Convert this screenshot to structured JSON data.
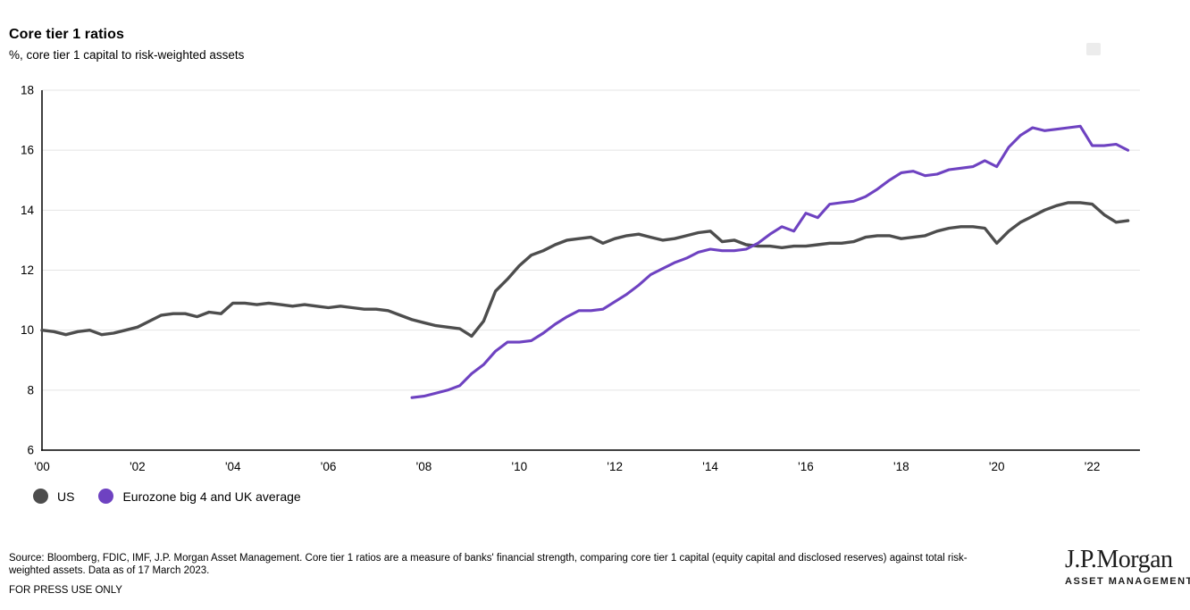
{
  "page": {
    "title": "Core tier 1 ratios",
    "subtitle": "%, core tier 1 capital to risk-weighted assets"
  },
  "icons": {
    "corner_icon": "expand-icon"
  },
  "footer": {
    "source_line1": "Source: Bloomberg, FDIC, IMF, J.P. Morgan Asset Management. Core tier 1 ratios are a measure of banks' financial strength, comparing core tier 1 capital (equity capital and disclosed reserves) against total risk-",
    "source_line2": "weighted assets. Data as of 17 March 2023.",
    "press_note": "FOR PRESS USE ONLY",
    "brand": {
      "logo": "J.P.Morgan",
      "division": "ASSET MANAGEMENT"
    }
  },
  "chart_data": {
    "type": "line",
    "title": "Core tier 1 ratios",
    "subtitle": "%, core tier 1 capital to risk-weighted assets",
    "ylabel": "%",
    "ylim": [
      6,
      18
    ],
    "yticks": [
      18,
      16,
      14,
      12,
      10,
      8,
      6
    ],
    "xlim": [
      2000,
      2023
    ],
    "xticks": [
      "'00",
      "'02",
      "'04",
      "'06",
      "'08",
      "'10",
      "'12",
      "'14",
      "'16",
      "'18",
      "'20",
      "'22"
    ],
    "xtick_years": [
      2000,
      2002,
      2004,
      2006,
      2008,
      2010,
      2012,
      2014,
      2016,
      2018,
      2020,
      2022
    ],
    "grid": "horizontal",
    "grid_color": "#e4e4e4",
    "axis_color": "#000000",
    "legend_position": "bottom-left",
    "series": [
      {
        "name": "US",
        "color": "#4d4d4d",
        "points": [
          [
            2000.0,
            10.0
          ],
          [
            2000.25,
            9.95
          ],
          [
            2000.5,
            9.85
          ],
          [
            2000.75,
            9.95
          ],
          [
            2001.0,
            10.0
          ],
          [
            2001.25,
            9.85
          ],
          [
            2001.5,
            9.9
          ],
          [
            2001.75,
            10.0
          ],
          [
            2002.0,
            10.1
          ],
          [
            2002.25,
            10.3
          ],
          [
            2002.5,
            10.5
          ],
          [
            2002.75,
            10.55
          ],
          [
            2003.0,
            10.55
          ],
          [
            2003.25,
            10.45
          ],
          [
            2003.5,
            10.6
          ],
          [
            2003.75,
            10.55
          ],
          [
            2004.0,
            10.9
          ],
          [
            2004.25,
            10.9
          ],
          [
            2004.5,
            10.85
          ],
          [
            2004.75,
            10.9
          ],
          [
            2005.0,
            10.85
          ],
          [
            2005.25,
            10.8
          ],
          [
            2005.5,
            10.85
          ],
          [
            2005.75,
            10.8
          ],
          [
            2006.0,
            10.75
          ],
          [
            2006.25,
            10.8
          ],
          [
            2006.5,
            10.75
          ],
          [
            2006.75,
            10.7
          ],
          [
            2007.0,
            10.7
          ],
          [
            2007.25,
            10.65
          ],
          [
            2007.5,
            10.5
          ],
          [
            2007.75,
            10.35
          ],
          [
            2008.0,
            10.25
          ],
          [
            2008.25,
            10.15
          ],
          [
            2008.5,
            10.1
          ],
          [
            2008.75,
            10.05
          ],
          [
            2009.0,
            9.8
          ],
          [
            2009.25,
            10.3
          ],
          [
            2009.5,
            11.3
          ],
          [
            2009.75,
            11.7
          ],
          [
            2010.0,
            12.15
          ],
          [
            2010.25,
            12.5
          ],
          [
            2010.5,
            12.65
          ],
          [
            2010.75,
            12.85
          ],
          [
            2011.0,
            13.0
          ],
          [
            2011.25,
            13.05
          ],
          [
            2011.5,
            13.1
          ],
          [
            2011.75,
            12.9
          ],
          [
            2012.0,
            13.05
          ],
          [
            2012.25,
            13.15
          ],
          [
            2012.5,
            13.2
          ],
          [
            2012.75,
            13.1
          ],
          [
            2013.0,
            13.0
          ],
          [
            2013.25,
            13.05
          ],
          [
            2013.5,
            13.15
          ],
          [
            2013.75,
            13.25
          ],
          [
            2014.0,
            13.3
          ],
          [
            2014.25,
            12.95
          ],
          [
            2014.5,
            13.0
          ],
          [
            2014.75,
            12.85
          ],
          [
            2015.0,
            12.8
          ],
          [
            2015.25,
            12.8
          ],
          [
            2015.5,
            12.75
          ],
          [
            2015.75,
            12.8
          ],
          [
            2016.0,
            12.8
          ],
          [
            2016.25,
            12.85
          ],
          [
            2016.5,
            12.9
          ],
          [
            2016.75,
            12.9
          ],
          [
            2017.0,
            12.95
          ],
          [
            2017.25,
            13.1
          ],
          [
            2017.5,
            13.15
          ],
          [
            2017.75,
            13.15
          ],
          [
            2018.0,
            13.05
          ],
          [
            2018.25,
            13.1
          ],
          [
            2018.5,
            13.15
          ],
          [
            2018.75,
            13.3
          ],
          [
            2019.0,
            13.4
          ],
          [
            2019.25,
            13.45
          ],
          [
            2019.5,
            13.45
          ],
          [
            2019.75,
            13.4
          ],
          [
            2020.0,
            12.9
          ],
          [
            2020.25,
            13.3
          ],
          [
            2020.5,
            13.6
          ],
          [
            2020.75,
            13.8
          ],
          [
            2021.0,
            14.0
          ],
          [
            2021.25,
            14.15
          ],
          [
            2021.5,
            14.25
          ],
          [
            2021.75,
            14.25
          ],
          [
            2022.0,
            14.2
          ],
          [
            2022.25,
            13.85
          ],
          [
            2022.5,
            13.6
          ],
          [
            2022.75,
            13.65
          ]
        ]
      },
      {
        "name": "Eurozone big 4 and UK average",
        "color": "#6e42c1",
        "points": [
          [
            2007.75,
            7.75
          ],
          [
            2008.0,
            7.8
          ],
          [
            2008.25,
            7.9
          ],
          [
            2008.5,
            8.0
          ],
          [
            2008.75,
            8.15
          ],
          [
            2009.0,
            8.55
          ],
          [
            2009.25,
            8.85
          ],
          [
            2009.5,
            9.3
          ],
          [
            2009.75,
            9.6
          ],
          [
            2010.0,
            9.6
          ],
          [
            2010.25,
            9.65
          ],
          [
            2010.5,
            9.9
          ],
          [
            2010.75,
            10.2
          ],
          [
            2011.0,
            10.45
          ],
          [
            2011.25,
            10.65
          ],
          [
            2011.5,
            10.65
          ],
          [
            2011.75,
            10.7
          ],
          [
            2012.0,
            10.95
          ],
          [
            2012.25,
            11.2
          ],
          [
            2012.5,
            11.5
          ],
          [
            2012.75,
            11.85
          ],
          [
            2013.0,
            12.05
          ],
          [
            2013.25,
            12.25
          ],
          [
            2013.5,
            12.4
          ],
          [
            2013.75,
            12.6
          ],
          [
            2014.0,
            12.7
          ],
          [
            2014.25,
            12.65
          ],
          [
            2014.5,
            12.65
          ],
          [
            2014.75,
            12.7
          ],
          [
            2015.0,
            12.9
          ],
          [
            2015.25,
            13.2
          ],
          [
            2015.5,
            13.45
          ],
          [
            2015.75,
            13.3
          ],
          [
            2016.0,
            13.9
          ],
          [
            2016.25,
            13.75
          ],
          [
            2016.5,
            14.2
          ],
          [
            2016.75,
            14.25
          ],
          [
            2017.0,
            14.3
          ],
          [
            2017.25,
            14.45
          ],
          [
            2017.5,
            14.7
          ],
          [
            2017.75,
            15.0
          ],
          [
            2018.0,
            15.25
          ],
          [
            2018.25,
            15.3
          ],
          [
            2018.5,
            15.15
          ],
          [
            2018.75,
            15.2
          ],
          [
            2019.0,
            15.35
          ],
          [
            2019.25,
            15.4
          ],
          [
            2019.5,
            15.45
          ],
          [
            2019.75,
            15.65
          ],
          [
            2020.0,
            15.45
          ],
          [
            2020.25,
            16.1
          ],
          [
            2020.5,
            16.5
          ],
          [
            2020.75,
            16.75
          ],
          [
            2021.0,
            16.65
          ],
          [
            2021.25,
            16.7
          ],
          [
            2021.5,
            16.75
          ],
          [
            2021.75,
            16.8
          ],
          [
            2022.0,
            16.15
          ],
          [
            2022.25,
            16.15
          ],
          [
            2022.5,
            16.2
          ],
          [
            2022.75,
            16.0
          ]
        ]
      }
    ]
  }
}
